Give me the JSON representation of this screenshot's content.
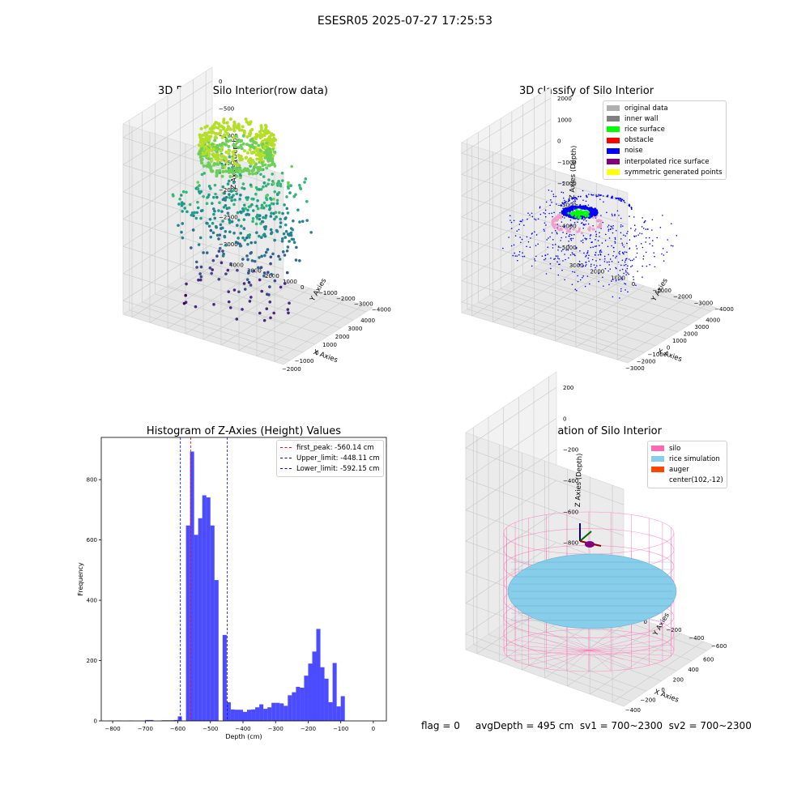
{
  "suptitle": "ESESR05 2025-07-27 17:25:53",
  "footer": "flag = 0     avgDepth = 495 cm  sv1 = 700~2300  sv2 = 700~2300",
  "chart_data": [
    {
      "id": "raw",
      "type": "scatter",
      "title": "3D Plot of Silo Interior(row data)",
      "xlabel": "X Axies",
      "ylabel": "Y Axies",
      "zlabel": "Z Axies (Depth)",
      "x_ticks": [
        "−2000",
        "−1000",
        "0",
        "1000",
        "2000",
        "3000",
        "4000"
      ],
      "y_ticks": [
        "4000",
        "3000",
        "2000",
        "1000",
        "0",
        "−1000",
        "−2000",
        "−3000",
        "−4000"
      ],
      "z_ticks": [
        "0",
        "−500",
        "−1000",
        "−1500",
        "−2000",
        "−2500",
        "−3000"
      ],
      "colormap": [
        "#fde725",
        "#b5de2b",
        "#6ece58",
        "#35b779",
        "#1f9e89",
        "#26828e",
        "#31688e",
        "#3e4989",
        "#482878",
        "#440154"
      ]
    },
    {
      "id": "classify",
      "type": "scatter",
      "title": "3D classify of Silo Interior",
      "xlabel": "X Axies",
      "ylabel": "Y Axies",
      "zlabel": "Z Axies (Depth)",
      "x_ticks": [
        "−3000",
        "−2000",
        "−1000",
        "0",
        "1000",
        "2000",
        "3000",
        "4000"
      ],
      "y_ticks": [
        "3000",
        "2000",
        "1000",
        "0",
        "−1000",
        "−2000",
        "−3000",
        "−4000"
      ],
      "z_ticks": [
        "2000",
        "1000",
        "0",
        "−1000",
        "−2000",
        "−3000",
        "−4000",
        "−5000"
      ],
      "legend": [
        {
          "label": "original data",
          "color": "#b0b0b0"
        },
        {
          "label": "inner wall",
          "color": "#808080"
        },
        {
          "label": "rice surface",
          "color": "#00ff00"
        },
        {
          "label": "obstacle",
          "color": "#ff0000"
        },
        {
          "label": "noise",
          "color": "#0000ff"
        },
        {
          "label": "interpolated rice surface",
          "color": "#800080"
        },
        {
          "label": "symmetric generated points",
          "color": "#ffff00"
        }
      ]
    },
    {
      "id": "hist",
      "type": "bar",
      "title": "Histogram of Z-Axies (Height) Values",
      "xlabel": "Depth (cm)",
      "ylabel": "Frequency",
      "xlim": [
        -835,
        40
      ],
      "ylim": [
        0,
        940
      ],
      "x_ticks": [
        -800,
        -700,
        -600,
        -500,
        -400,
        -300,
        -200,
        -100,
        0
      ],
      "y_ticks": [
        0,
        200,
        400,
        600,
        800
      ],
      "bin_width": 12.5,
      "bar_color": "#0000ff",
      "bins": [
        [
          -812.5,
          1
        ],
        [
          -787.5,
          1
        ],
        [
          -750,
          1
        ],
        [
          -700,
          3
        ],
        [
          -687.5,
          3
        ],
        [
          -650,
          2
        ],
        [
          -637.5,
          2
        ],
        [
          -625,
          2
        ],
        [
          -612.5,
          3
        ],
        [
          -600,
          15
        ],
        [
          -575,
          648
        ],
        [
          -562.5,
          893
        ],
        [
          -550,
          617
        ],
        [
          -537.5,
          672
        ],
        [
          -525,
          748
        ],
        [
          -512.5,
          741
        ],
        [
          -500,
          648
        ],
        [
          -487.5,
          467
        ],
        [
          -462.5,
          285
        ],
        [
          -450,
          62
        ],
        [
          -437.5,
          38
        ],
        [
          -425,
          37
        ],
        [
          -412.5,
          37
        ],
        [
          -400,
          30
        ],
        [
          -387.5,
          37
        ],
        [
          -375,
          38
        ],
        [
          -362.5,
          45
        ],
        [
          -350,
          55
        ],
        [
          -337.5,
          40
        ],
        [
          -325,
          45
        ],
        [
          -312.5,
          60
        ],
        [
          -300,
          60
        ],
        [
          -287.5,
          58
        ],
        [
          -275,
          50
        ],
        [
          -262.5,
          85
        ],
        [
          -250,
          95
        ],
        [
          -237.5,
          113
        ],
        [
          -225,
          110
        ],
        [
          -212.5,
          150
        ],
        [
          -200,
          190
        ],
        [
          -187.5,
          230
        ],
        [
          -175,
          305
        ],
        [
          -162.5,
          178
        ],
        [
          -150,
          140
        ],
        [
          -137.5,
          62
        ],
        [
          -125,
          192
        ],
        [
          -112.5,
          48
        ],
        [
          -100,
          82
        ]
      ],
      "vlines": [
        {
          "label": "first_peak: -560.14 cm",
          "x": -560.14,
          "color": "#ff0000"
        },
        {
          "label": "Upper_limit: -448.11 cm",
          "x": -448.11,
          "color": "#0000ff"
        },
        {
          "label": "Lower_limit: -592.15 cm",
          "x": -592.15,
          "color": "#0000ff"
        }
      ]
    },
    {
      "id": "sim",
      "type": "surface",
      "title": "3D simulation of Silo Interior",
      "xlabel": "X Axies",
      "ylabel": "Y Axies",
      "zlabel": "Z Axies (Depth)",
      "x_ticks": [
        "−400",
        "−200",
        "0",
        "200",
        "400",
        "600"
      ],
      "y_ticks": [
        "600",
        "400",
        "200",
        "0",
        "−200",
        "−400",
        "−600"
      ],
      "z_ticks": [
        "200",
        "0",
        "−200",
        "−400",
        "−600",
        "−800",
        "−1000"
      ],
      "legend": [
        {
          "label": "silo",
          "color": "#ff69b4"
        },
        {
          "label": "rice simulation",
          "color": "#87ceeb"
        },
        {
          "label": "auger",
          "color": "#ff4500"
        },
        {
          "label": "center(102,-12)",
          "color": "transparent"
        }
      ]
    }
  ]
}
